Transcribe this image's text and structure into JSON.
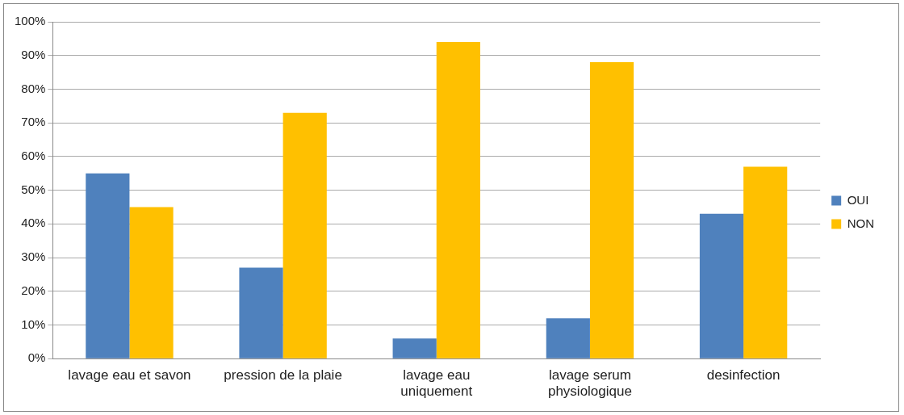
{
  "chart_data": {
    "type": "bar",
    "categories": [
      "lavage eau et savon",
      "pression de la plaie",
      "lavage eau uniquement",
      "lavage serum physiologique",
      "desinfection"
    ],
    "series": [
      {
        "name": "OUI",
        "color": "#4f81bd",
        "values": [
          55,
          27,
          6,
          12,
          43
        ]
      },
      {
        "name": "NON",
        "color": "#ffc000",
        "values": [
          45,
          73,
          94,
          88,
          57
        ]
      }
    ],
    "ylim": [
      0,
      100
    ],
    "yticks": [
      {
        "value": 0,
        "label": "0%"
      },
      {
        "value": 10,
        "label": "10%"
      },
      {
        "value": 20,
        "label": "20%"
      },
      {
        "value": 30,
        "label": "30%"
      },
      {
        "value": 40,
        "label": "40%"
      },
      {
        "value": 50,
        "label": "50%"
      },
      {
        "value": 60,
        "label": "60%"
      },
      {
        "value": 70,
        "label": "70%"
      },
      {
        "value": 80,
        "label": "80%"
      },
      {
        "value": 90,
        "label": "90%"
      },
      {
        "value": 100,
        "label": "100%"
      }
    ],
    "grid": "y",
    "legend": "right"
  }
}
